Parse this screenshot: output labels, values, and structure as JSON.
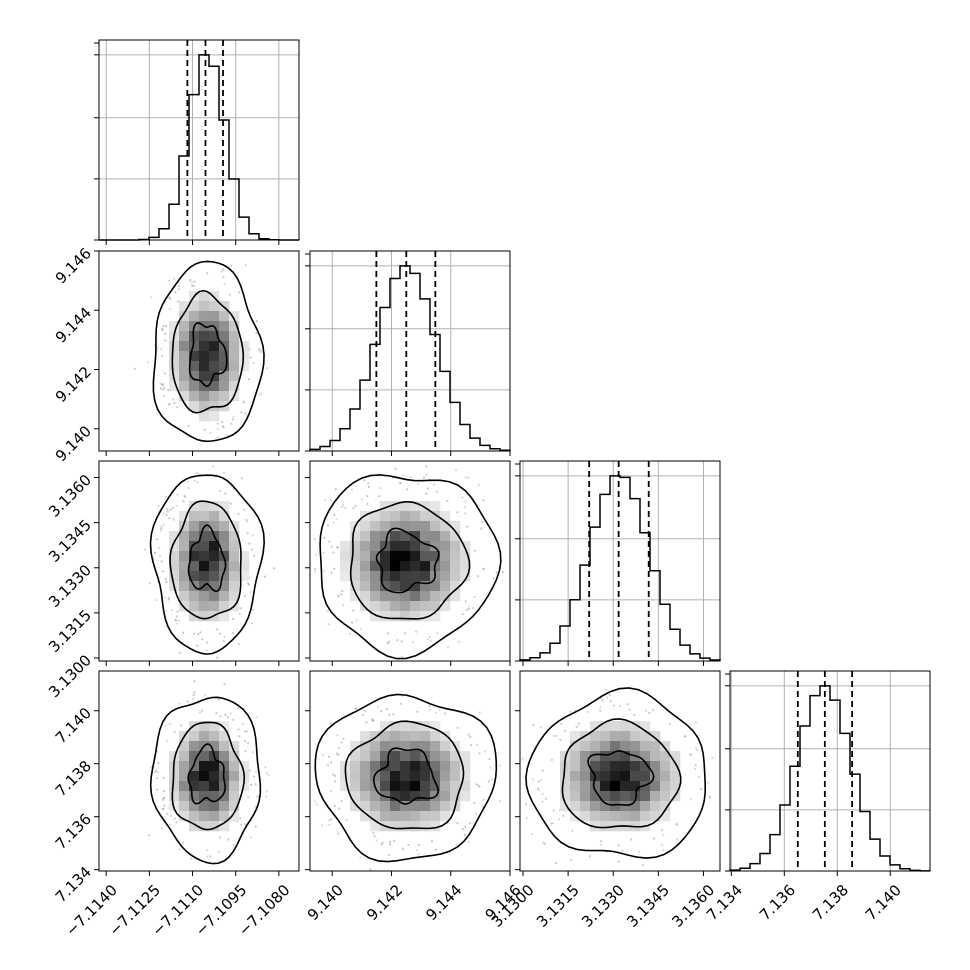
{
  "chart_data": {
    "type": "corner",
    "title": "",
    "description_of_layout": "",
    "grid": true,
    "variables": [
      {
        "name": "",
        "range": [
          -7.11425,
          -7.1073
        ],
        "ticks": [
          -7.114,
          -7.1125,
          -7.111,
          -7.1095,
          -7.108
        ],
        "tick_labels": [
          "−7.1140",
          "−7.1125",
          "−7.1110",
          "−7.1095",
          "−7.1080"
        ],
        "median": -7.11055,
        "lower": -7.11118,
        "upper": -7.10994,
        "mean": -7.1105,
        "sigma": 0.00062
      },
      {
        "name": "",
        "range": [
          9.13925,
          9.146
        ],
        "ticks": [
          9.14,
          9.142,
          9.144,
          9.146
        ],
        "tick_labels": [
          "9.140",
          "9.142",
          "9.144",
          "9.146"
        ],
        "median": 9.1425,
        "lower": 9.14149,
        "upper": 9.14348,
        "mean": 9.1425,
        "sigma": 0.001
      },
      {
        "name": "",
        "range": [
          3.1299,
          3.13655
        ],
        "ticks": [
          3.13,
          3.1315,
          3.133,
          3.1345,
          3.136
        ],
        "tick_labels": [
          "3.1300",
          "3.1315",
          "3.1330",
          "3.1345",
          "3.1360"
        ],
        "median": 3.13318,
        "lower": 3.1322,
        "upper": 3.13418,
        "mean": 3.1332,
        "sigma": 0.00098
      },
      {
        "name": "",
        "range": [
          7.13395,
          7.1415
        ],
        "ticks": [
          7.134,
          7.136,
          7.138,
          7.14
        ],
        "tick_labels": [
          "7.134",
          "7.136",
          "7.138",
          "7.140"
        ],
        "median": 7.13753,
        "lower": 7.13651,
        "upper": 7.13856,
        "mean": 7.1375,
        "sigma": 0.00102
      }
    ],
    "bins": 20,
    "quantiles": [
      0.16,
      0.5,
      0.84
    ],
    "contour_levels": [
      0.39,
      0.86,
      0.99
    ],
    "colors": {
      "line": "#000000",
      "grid": "#b0b0b0",
      "points": "#9a9a9a"
    }
  }
}
